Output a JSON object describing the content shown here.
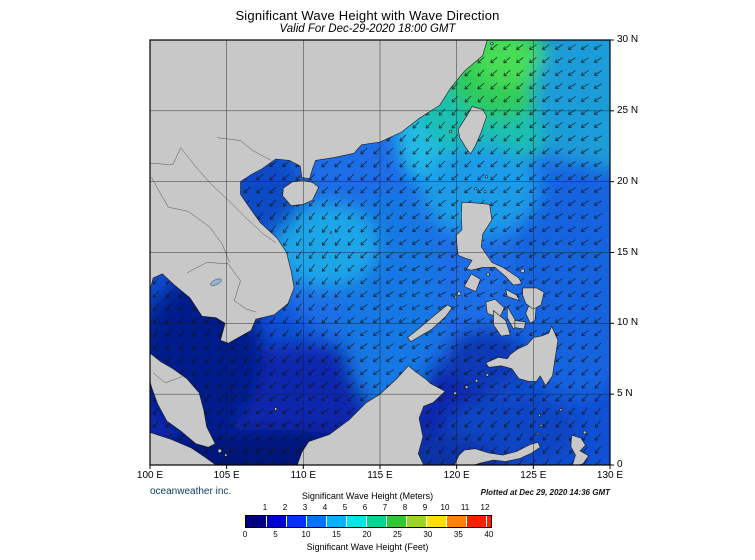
{
  "title": "Significant Wave Height with Wave Direction",
  "subtitle": "Valid For Dec-29-2020 18:00 GMT",
  "credit": "oceanweather inc.",
  "plotted_at": "Plotted at Dec 29, 2020 14:36 GMT",
  "axes": {
    "lon_ticks": [
      "100 E",
      "105 E",
      "110 E",
      "115 E",
      "120 E",
      "125 E",
      "130 E"
    ],
    "lat_ticks": [
      "30 N",
      "25 N",
      "20 N",
      "15 N",
      "10 N",
      "5 N",
      "0"
    ]
  },
  "colorbar": {
    "meters_label": "Significant Wave Height (Meters)",
    "feet_label": "Significant Wave Height (Feet)",
    "meters_ticks": [
      "1",
      "2",
      "3",
      "4",
      "5",
      "6",
      "7",
      "8",
      "9",
      "10",
      "11",
      "12"
    ],
    "feet_ticks": [
      "0",
      "5",
      "10",
      "15",
      "20",
      "25",
      "30",
      "35",
      "40"
    ],
    "scale_max_meters": 12.25,
    "colors": [
      "#000086",
      "#0000d2",
      "#0032ff",
      "#0073ff",
      "#00b4ff",
      "#00e6e6",
      "#00d795",
      "#32c832",
      "#9bd71e",
      "#ffe100",
      "#ff8200",
      "#ff1e00"
    ]
  },
  "map": {
    "ocean_base_color": "#0f50d4",
    "land_color": "#c8c8c8",
    "coast_color": "#1a1a1a",
    "arrow_color": "#141414",
    "grid_color": "#1a1a1a"
  }
}
